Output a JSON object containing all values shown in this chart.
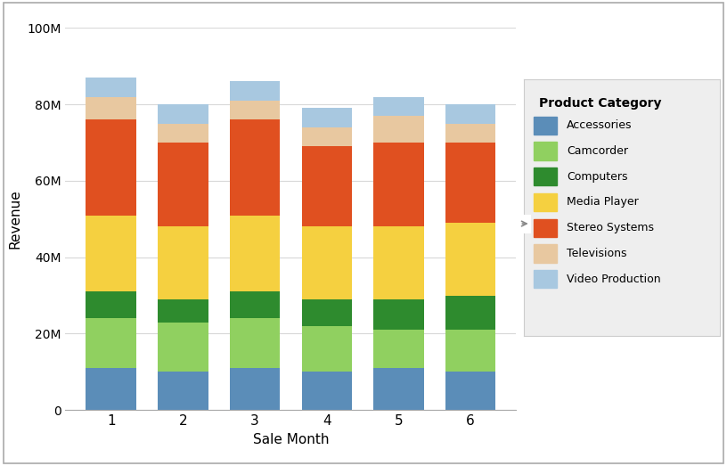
{
  "categories": [
    1,
    2,
    3,
    4,
    5,
    6
  ],
  "series": {
    "Accessories": [
      11,
      10,
      11,
      10,
      11,
      10
    ],
    "Camcorder": [
      13,
      13,
      13,
      12,
      10,
      11
    ],
    "Computers": [
      7,
      6,
      7,
      7,
      8,
      9
    ],
    "Media Player": [
      20,
      19,
      20,
      19,
      19,
      19
    ],
    "Stereo Systems": [
      25,
      22,
      25,
      21,
      22,
      21
    ],
    "Televisions": [
      6,
      5,
      5,
      5,
      7,
      5
    ],
    "Video Production": [
      5,
      5,
      5,
      5,
      5,
      5
    ]
  },
  "colors": {
    "Accessories": "#5B8DB8",
    "Camcorder": "#90D060",
    "Computers": "#2E8B2E",
    "Media Player": "#F5D040",
    "Stereo Systems": "#E05020",
    "Televisions": "#E8C8A0",
    "Video Production": "#A8C8E0"
  },
  "xlabel": "Sale Month",
  "ylabel": "Revenue",
  "legend_title": "Product Category",
  "ylim": [
    0,
    100
  ],
  "yticks": [
    0,
    20,
    40,
    60,
    80,
    100
  ],
  "ytick_labels": [
    "0",
    "20M",
    "40M",
    "60M",
    "80M",
    "100M"
  ],
  "bar_width": 0.7,
  "background_color": "#FFFFFF",
  "plot_bg_color": "#FFFFFF",
  "legend_bg_color": "#EEEEEE",
  "grid_color": "#D8D8D8",
  "border_color": "#AAAAAA"
}
